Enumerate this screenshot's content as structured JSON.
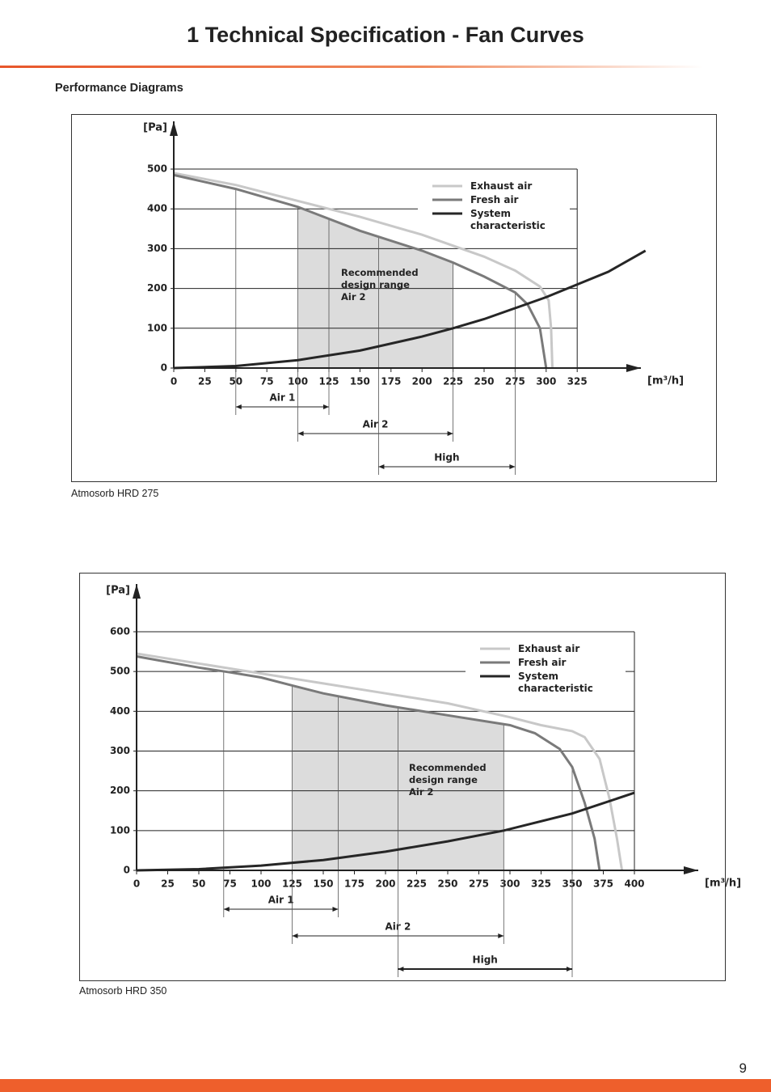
{
  "header": {
    "title": "1  Technical Specification - Fan Curves",
    "section": "Performance Diagrams",
    "page_number": "9"
  },
  "chart_data": [
    {
      "type": "line",
      "caption": "Atmosorb HRD 275",
      "y_label": "[Pa]",
      "x_label": "[m³/h]",
      "xlim": [
        0,
        375
      ],
      "ylim": [
        0,
        620
      ],
      "xticks": [
        0,
        25,
        50,
        75,
        100,
        125,
        150,
        175,
        200,
        225,
        250,
        275,
        300,
        325
      ],
      "yticks": [
        0,
        100,
        200,
        300,
        400,
        500
      ],
      "grid": true,
      "series": [
        {
          "name": "Exhaust air",
          "color": "#c8c8c8",
          "x": [
            0,
            50,
            100,
            150,
            200,
            250,
            275,
            295,
            302,
            304,
            305
          ],
          "values": [
            490,
            460,
            420,
            380,
            335,
            280,
            245,
            205,
            170,
            100,
            0
          ]
        },
        {
          "name": "Fresh air",
          "color": "#7a7a7a",
          "x": [
            0,
            50,
            100,
            150,
            200,
            225,
            250,
            275,
            285,
            295,
            300
          ],
          "values": [
            485,
            450,
            405,
            345,
            295,
            265,
            230,
            190,
            160,
            100,
            0
          ]
        },
        {
          "name": "System characteristic",
          "color": "#262626",
          "x": [
            0,
            50,
            100,
            150,
            200,
            225,
            250,
            300,
            350,
            380
          ],
          "values": [
            0,
            5,
            20,
            44,
            79,
            100,
            123,
            178,
            242,
            295
          ]
        }
      ],
      "ranges": [
        {
          "name": "Air 1",
          "start": 50,
          "end": 125
        },
        {
          "name": "Air 2",
          "start": 100,
          "end": 225
        },
        {
          "name": "High",
          "start": 165,
          "end": 275
        }
      ],
      "annotation": "Recommended design range Air 2"
    },
    {
      "type": "line",
      "caption": "Atmosorb HRD 350",
      "y_label": "[Pa]",
      "x_label": "[m³/h]",
      "xlim": [
        0,
        450
      ],
      "ylim": [
        0,
        720
      ],
      "xticks": [
        0,
        25,
        50,
        75,
        100,
        125,
        150,
        175,
        200,
        225,
        250,
        275,
        300,
        325,
        350,
        375,
        400
      ],
      "yticks": [
        0,
        100,
        200,
        300,
        400,
        500,
        600
      ],
      "grid": true,
      "series": [
        {
          "name": "Exhaust air",
          "color": "#c8c8c8",
          "x": [
            0,
            50,
            100,
            150,
            200,
            250,
            300,
            325,
            350,
            360,
            372,
            380,
            386,
            390
          ],
          "values": [
            545,
            520,
            495,
            470,
            445,
            420,
            385,
            365,
            350,
            335,
            280,
            180,
            80,
            0
          ]
        },
        {
          "name": "Fresh air",
          "color": "#7a7a7a",
          "x": [
            0,
            50,
            75,
            100,
            125,
            150,
            200,
            250,
            300,
            320,
            340,
            350,
            360,
            368,
            372
          ],
          "values": [
            538,
            510,
            498,
            485,
            465,
            445,
            415,
            390,
            365,
            345,
            305,
            260,
            170,
            80,
            0
          ]
        },
        {
          "name": "System characteristic",
          "color": "#262626",
          "x": [
            0,
            50,
            100,
            150,
            200,
            250,
            295,
            350,
            400
          ],
          "values": [
            0,
            3,
            12,
            26,
            47,
            73,
            100,
            143,
            195
          ]
        }
      ],
      "ranges": [
        {
          "name": "Air 1",
          "start": 70,
          "end": 162
        },
        {
          "name": "Air 2",
          "start": 125,
          "end": 295
        },
        {
          "name": "High",
          "start": 210,
          "end": 350
        }
      ],
      "annotation": "Recommended design range Air 2"
    }
  ]
}
